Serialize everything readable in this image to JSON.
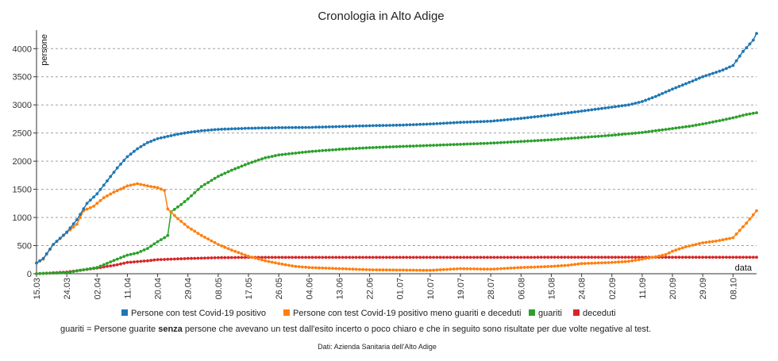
{
  "chart_data": {
    "type": "line",
    "title": "Cronologia in Alto Adige",
    "xlabel": "data",
    "ylabel": "persone",
    "ylim": [
      0,
      4300
    ],
    "yticks": [
      0,
      500,
      1000,
      1500,
      2000,
      2500,
      3000,
      3500,
      4000
    ],
    "xlim": [
      "15.03",
      "15.10"
    ],
    "xticks": [
      "15.03",
      "24.03",
      "02.04",
      "11.04",
      "20.04",
      "29.04",
      "08.05",
      "17.05",
      "26.05",
      "04.06",
      "13.06",
      "22.06",
      "01.07",
      "10.07",
      "19.07",
      "28.07",
      "06.08",
      "15.08",
      "24.08",
      "02.09",
      "11.09",
      "20.09",
      "29.09",
      "08.10"
    ],
    "grid": "horizontal",
    "legend_position": "bottom",
    "series": [
      {
        "name": "Persone con test Covid-19 positivo",
        "color": "#1f77b4",
        "points": [
          [
            "15.03",
            190
          ],
          [
            "17.03",
            270
          ],
          [
            "20.03",
            520
          ],
          [
            "24.03",
            740
          ],
          [
            "27.03",
            960
          ],
          [
            "30.03",
            1250
          ],
          [
            "02.04",
            1420
          ],
          [
            "05.04",
            1650
          ],
          [
            "08.04",
            1880
          ],
          [
            "11.04",
            2080
          ],
          [
            "14.04",
            2220
          ],
          [
            "17.04",
            2330
          ],
          [
            "20.04",
            2400
          ],
          [
            "23.04",
            2440
          ],
          [
            "26.04",
            2480
          ],
          [
            "29.04",
            2510
          ],
          [
            "03.05",
            2540
          ],
          [
            "08.05",
            2565
          ],
          [
            "17.05",
            2585
          ],
          [
            "26.05",
            2595
          ],
          [
            "04.06",
            2600
          ],
          [
            "13.06",
            2615
          ],
          [
            "22.06",
            2630
          ],
          [
            "01.07",
            2640
          ],
          [
            "10.07",
            2660
          ],
          [
            "19.07",
            2690
          ],
          [
            "28.07",
            2710
          ],
          [
            "06.08",
            2760
          ],
          [
            "15.08",
            2820
          ],
          [
            "24.08",
            2890
          ],
          [
            "02.09",
            2960
          ],
          [
            "07.09",
            3000
          ],
          [
            "11.09",
            3060
          ],
          [
            "15.09",
            3150
          ],
          [
            "20.09",
            3280
          ],
          [
            "25.09",
            3400
          ],
          [
            "29.09",
            3500
          ],
          [
            "02.10",
            3560
          ],
          [
            "05.10",
            3620
          ],
          [
            "08.10",
            3700
          ],
          [
            "11.10",
            3950
          ],
          [
            "14.10",
            4150
          ],
          [
            "15.10",
            4270
          ]
        ]
      },
      {
        "name": "Persone con test Covid-19 positivo meno guariti e deceduti",
        "color": "#ff7f0e",
        "points": [
          [
            "15.03",
            190
          ],
          [
            "17.03",
            260
          ],
          [
            "20.03",
            520
          ],
          [
            "24.03",
            730
          ],
          [
            "27.03",
            880
          ],
          [
            "29.03",
            1120
          ],
          [
            "01.04",
            1200
          ],
          [
            "04.04",
            1350
          ],
          [
            "07.04",
            1450
          ],
          [
            "11.04",
            1560
          ],
          [
            "14.04",
            1600
          ],
          [
            "17.04",
            1560
          ],
          [
            "20.04",
            1530
          ],
          [
            "22.04",
            1480
          ],
          [
            "23.04",
            1150
          ],
          [
            "26.04",
            980
          ],
          [
            "29.04",
            830
          ],
          [
            "03.05",
            680
          ],
          [
            "08.05",
            520
          ],
          [
            "12.05",
            420
          ],
          [
            "17.05",
            310
          ],
          [
            "22.05",
            230
          ],
          [
            "26.05",
            180
          ],
          [
            "31.05",
            130
          ],
          [
            "04.06",
            110
          ],
          [
            "13.06",
            90
          ],
          [
            "22.06",
            70
          ],
          [
            "01.07",
            65
          ],
          [
            "10.07",
            60
          ],
          [
            "19.07",
            90
          ],
          [
            "28.07",
            80
          ],
          [
            "06.08",
            110
          ],
          [
            "15.08",
            130
          ],
          [
            "20.08",
            150
          ],
          [
            "24.08",
            180
          ],
          [
            "02.09",
            200
          ],
          [
            "07.09",
            220
          ],
          [
            "11.09",
            260
          ],
          [
            "15.09",
            300
          ],
          [
            "18.09",
            340
          ],
          [
            "20.09",
            400
          ],
          [
            "24.09",
            480
          ],
          [
            "29.09",
            550
          ],
          [
            "03.10",
            580
          ],
          [
            "08.10",
            640
          ],
          [
            "12.10",
            900
          ],
          [
            "15.10",
            1120
          ]
        ]
      },
      {
        "name": "guariti",
        "color": "#2ca02c",
        "points": [
          [
            "15.03",
            0
          ],
          [
            "24.03",
            20
          ],
          [
            "02.04",
            110
          ],
          [
            "08.04",
            260
          ],
          [
            "11.04",
            330
          ],
          [
            "14.04",
            370
          ],
          [
            "17.04",
            450
          ],
          [
            "20.04",
            570
          ],
          [
            "22.04",
            640
          ],
          [
            "23.04",
            680
          ],
          [
            "24.04",
            1100
          ],
          [
            "27.04",
            1230
          ],
          [
            "29.04",
            1330
          ],
          [
            "03.05",
            1550
          ],
          [
            "08.05",
            1730
          ],
          [
            "12.05",
            1840
          ],
          [
            "17.05",
            1960
          ],
          [
            "22.05",
            2060
          ],
          [
            "26.05",
            2110
          ],
          [
            "04.06",
            2170
          ],
          [
            "13.06",
            2210
          ],
          [
            "22.06",
            2240
          ],
          [
            "01.07",
            2260
          ],
          [
            "10.07",
            2280
          ],
          [
            "19.07",
            2300
          ],
          [
            "28.07",
            2320
          ],
          [
            "06.08",
            2350
          ],
          [
            "15.08",
            2380
          ],
          [
            "24.08",
            2420
          ],
          [
            "02.09",
            2460
          ],
          [
            "11.09",
            2510
          ],
          [
            "20.09",
            2580
          ],
          [
            "25.09",
            2620
          ],
          [
            "29.09",
            2660
          ],
          [
            "04.10",
            2720
          ],
          [
            "08.10",
            2770
          ],
          [
            "12.10",
            2830
          ],
          [
            "15.10",
            2860
          ]
        ]
      },
      {
        "name": "deceduti",
        "color": "#d62728",
        "points": [
          [
            "15.03",
            0
          ],
          [
            "24.03",
            30
          ],
          [
            "02.04",
            100
          ],
          [
            "08.04",
            160
          ],
          [
            "11.04",
            200
          ],
          [
            "17.04",
            230
          ],
          [
            "20.04",
            250
          ],
          [
            "29.04",
            270
          ],
          [
            "08.05",
            285
          ],
          [
            "17.05",
            290
          ],
          [
            "15.10",
            292
          ]
        ]
      }
    ],
    "note": {
      "prefix": "guariti = Persone guarite ",
      "bold": "senza",
      "suffix": " persone che avevano un test dall'esito incerto o poco chiaro e che in seguito sono risultate per due volte negative al test."
    },
    "source": "Dati: Azienda Sanitaria dell'Alto Adige"
  }
}
